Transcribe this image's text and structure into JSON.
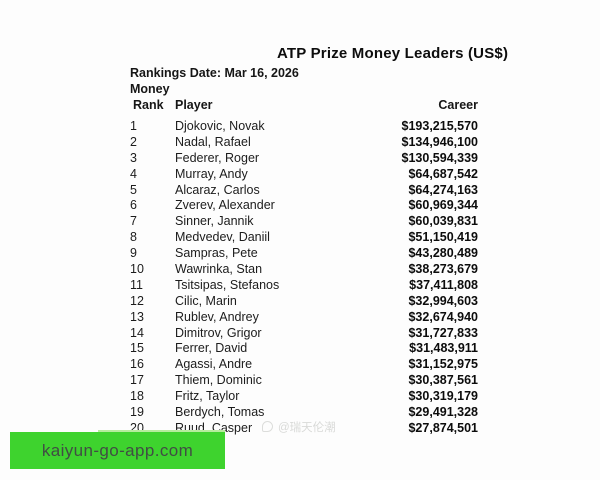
{
  "title": "ATP Prize Money Leaders (US$)",
  "rankings_date": "Rankings Date: Mar 16, 2026",
  "table": {
    "col_money": "Money",
    "col_rank": "Rank",
    "col_player": "Player",
    "col_career": "Career",
    "rows": [
      {
        "rank": "1",
        "player": "Djokovic, Novak",
        "career": "$193,215,570"
      },
      {
        "rank": "2",
        "player": "Nadal, Rafael",
        "career": "$134,946,100"
      },
      {
        "rank": "3",
        "player": "Federer, Roger",
        "career": "$130,594,339"
      },
      {
        "rank": "4",
        "player": "Murray, Andy",
        "career": "$64,687,542"
      },
      {
        "rank": "5",
        "player": "Alcaraz, Carlos",
        "career": "$64,274,163"
      },
      {
        "rank": "6",
        "player": "Zverev, Alexander",
        "career": "$60,969,344"
      },
      {
        "rank": "7",
        "player": "Sinner, Jannik",
        "career": "$60,039,831"
      },
      {
        "rank": "8",
        "player": "Medvedev, Daniil",
        "career": "$51,150,419"
      },
      {
        "rank": "9",
        "player": "Sampras, Pete",
        "career": "$43,280,489"
      },
      {
        "rank": "10",
        "player": "Wawrinka, Stan",
        "career": "$38,273,679"
      },
      {
        "rank": "11",
        "player": "Tsitsipas, Stefanos",
        "career": "$37,411,808"
      },
      {
        "rank": "12",
        "player": "Cilic, Marin",
        "career": "$32,994,603"
      },
      {
        "rank": "13",
        "player": "Rublev, Andrey",
        "career": "$32,674,940"
      },
      {
        "rank": "14",
        "player": "Dimitrov, Grigor",
        "career": "$31,727,833"
      },
      {
        "rank": "15",
        "player": "Ferrer, David",
        "career": "$31,483,911"
      },
      {
        "rank": "16",
        "player": "Agassi, Andre",
        "career": "$31,152,975"
      },
      {
        "rank": "17",
        "player": "Thiem, Dominic",
        "career": "$30,387,561"
      },
      {
        "rank": "18",
        "player": "Fritz, Taylor",
        "career": "$30,319,179"
      },
      {
        "rank": "19",
        "player": "Berdych, Tomas",
        "career": "$29,491,328"
      },
      {
        "rank": "20",
        "player": "Ruud, Casper",
        "career": "$27,874,501"
      }
    ]
  },
  "watermark": {
    "icon": "weibo-icon",
    "text": "@瑞天伦潮"
  },
  "banner": {
    "text": "kaiyun-go-app.com",
    "bg_color": "#3ed32e",
    "strip_color": "#b7ec9d",
    "text_color": "#414d44"
  }
}
